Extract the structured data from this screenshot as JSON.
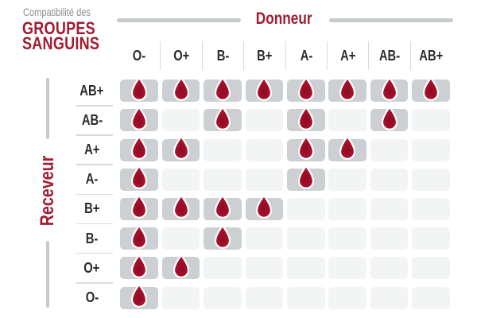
{
  "title": {
    "eyebrow": "Compatibilité des",
    "main_line1": "GROUPES",
    "main_line2": "SANGUINS"
  },
  "donor_axis": {
    "label": "Donneur"
  },
  "receiver_axis": {
    "label": "Receveur"
  },
  "icons": {
    "compatible_marker": "blood-drop-icon"
  },
  "colors": {
    "brand_red": "#A21C31",
    "drop_red": "#A30F2A",
    "drop_red_dark": "#8E0B24",
    "drop_red_light": "#BB1432",
    "cell_filled": "#CDD0D2",
    "cell_empty": "#F3F4F4",
    "axis_bar_gray": "#C7CACB",
    "divider_gray": "#D9DBDB",
    "label_dark": "#2B2B2B",
    "eyebrow_gray": "#8C8E90"
  },
  "chart_data": {
    "type": "heatmap",
    "title": "Compatibilité des groupes sanguins",
    "x_label": "Donneur",
    "y_label": "Receveur",
    "x_categories": [
      "O-",
      "O+",
      "B-",
      "B+",
      "A-",
      "A+",
      "AB-",
      "AB+"
    ],
    "y_categories": [
      "AB+",
      "AB-",
      "A+",
      "A-",
      "B+",
      "B-",
      "O+",
      "O-"
    ],
    "values": [
      [
        1,
        1,
        1,
        1,
        1,
        1,
        1,
        1
      ],
      [
        1,
        0,
        1,
        0,
        1,
        0,
        1,
        0
      ],
      [
        1,
        1,
        0,
        0,
        1,
        1,
        0,
        0
      ],
      [
        1,
        0,
        0,
        0,
        1,
        0,
        0,
        0
      ],
      [
        1,
        1,
        1,
        1,
        0,
        0,
        0,
        0
      ],
      [
        1,
        0,
        1,
        0,
        0,
        0,
        0,
        0
      ],
      [
        1,
        1,
        0,
        0,
        0,
        0,
        0,
        0
      ],
      [
        1,
        0,
        0,
        0,
        0,
        0,
        0,
        0
      ]
    ],
    "marker_meaning": "blood drop in cell = donor group compatible with receiver group",
    "legend_position": "none",
    "grid": false
  }
}
